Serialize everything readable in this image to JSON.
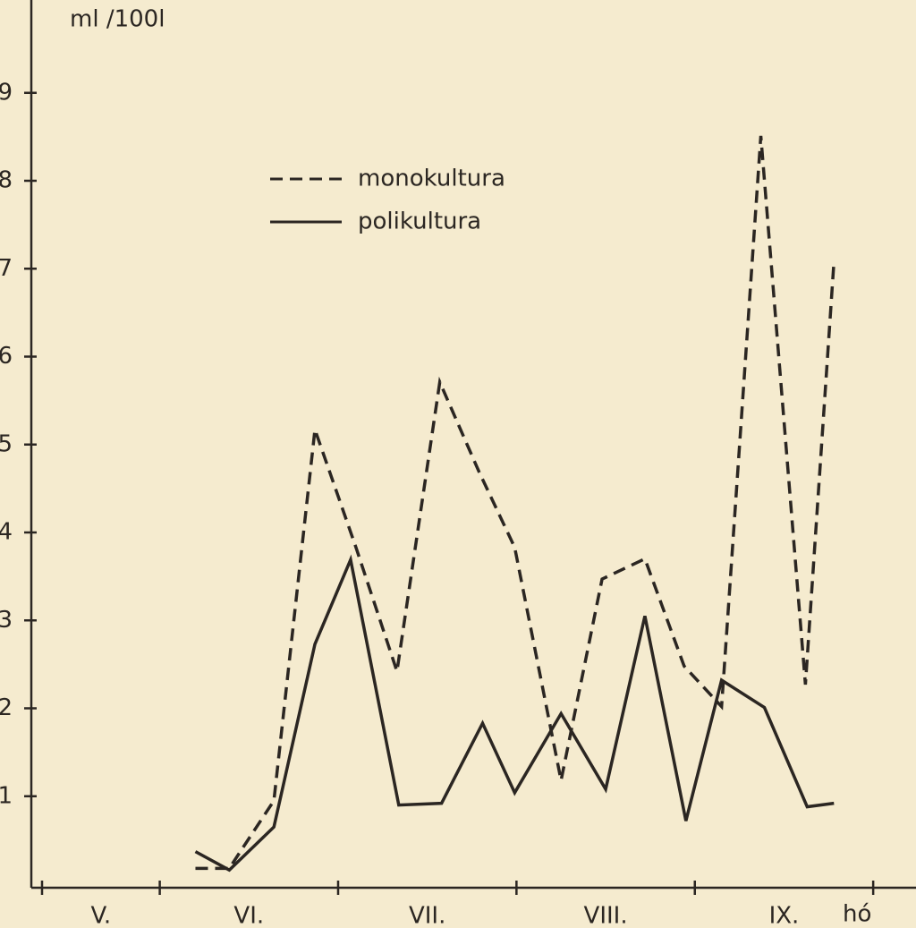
{
  "chart_data": {
    "type": "line",
    "y_label": "ml /100l",
    "x_label": "hó",
    "xlim": [
      5.34,
      10.24
    ],
    "xticks": [
      {
        "value": 6,
        "label": "V."
      },
      {
        "value": 7,
        "label": "VI."
      },
      {
        "value": 8,
        "label": "VII."
      },
      {
        "value": 9,
        "label": "VIII."
      },
      {
        "value": 10,
        "label": "IX."
      }
    ],
    "ylim": [
      0,
      10
    ],
    "yticks": [
      1,
      2,
      3,
      4,
      5,
      6,
      7,
      8,
      9
    ],
    "legend": "upper left",
    "series": [
      {
        "name": "monokultura",
        "color": "#2b2622",
        "dash": true,
        "x": [
          6.2,
          6.39,
          6.64,
          6.87,
          7.1,
          7.33,
          7.57,
          7.79,
          7.99,
          8.25,
          8.48,
          8.72,
          8.94,
          9.15,
          9.37,
          9.62,
          9.78
        ],
        "values": [
          0.18,
          0.18,
          0.95,
          5.17,
          3.83,
          2.42,
          5.71,
          4.69,
          3.83,
          1.18,
          3.47,
          3.7,
          2.48,
          2.02,
          8.51,
          2.27,
          7.08
        ]
      },
      {
        "name": "polikultura",
        "color": "#2b2622",
        "dash": false,
        "x": [
          6.2,
          6.39,
          6.64,
          6.87,
          7.07,
          7.34,
          7.58,
          7.81,
          7.99,
          8.25,
          8.5,
          8.72,
          8.95,
          9.15,
          9.39,
          9.63,
          9.78
        ],
        "values": [
          0.37,
          0.16,
          0.65,
          2.73,
          3.69,
          0.9,
          0.92,
          1.83,
          1.04,
          1.94,
          1.08,
          3.05,
          0.72,
          2.32,
          2.01,
          0.88,
          0.92
        ]
      }
    ]
  }
}
